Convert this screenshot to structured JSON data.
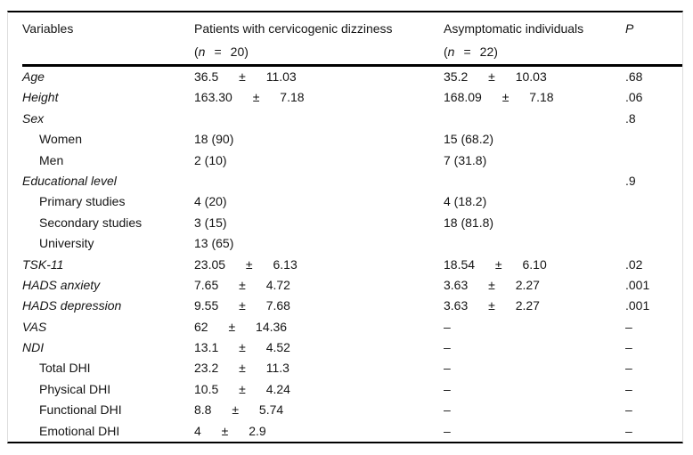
{
  "table": {
    "columns": [
      {
        "title": "Variables"
      },
      {
        "title": "Patients with cervicogenic dizziness",
        "n_open": "(",
        "n_symbol": "n",
        "n_eq": "=",
        "n_value": "20",
        "n_close": ")"
      },
      {
        "title": "Asymptomatic individuals",
        "n_open": "(",
        "n_symbol": "n",
        "n_eq": "=",
        "n_value": "22",
        "n_close": ")"
      },
      {
        "title": "P"
      }
    ],
    "rows": [
      {
        "label": "Age",
        "level": 0,
        "patients": "36.5 ± 11.03",
        "asymptomatic": "35.2 ± 10.03",
        "p": ".68"
      },
      {
        "label": "Height",
        "level": 0,
        "patients": "163.30 ± 7.18",
        "asymptomatic": "168.09 ± 7.18",
        "p": ".06"
      },
      {
        "label": "Sex",
        "level": 0,
        "patients": "",
        "asymptomatic": "",
        "p": ".8"
      },
      {
        "label": "Women",
        "level": 1,
        "patients": "18 (90)",
        "asymptomatic": "15 (68.2)",
        "p": ""
      },
      {
        "label": "Men",
        "level": 1,
        "patients": "2 (10)",
        "asymptomatic": "7 (31.8)",
        "p": ""
      },
      {
        "label": "Educational level",
        "level": 0,
        "patients": "",
        "asymptomatic": "",
        "p": ".9"
      },
      {
        "label": "Primary studies",
        "level": 1,
        "patients": "4 (20)",
        "asymptomatic": "4 (18.2)",
        "p": ""
      },
      {
        "label": "Secondary studies",
        "level": 1,
        "patients": "3 (15)",
        "asymptomatic": "18 (81.8)",
        "p": ""
      },
      {
        "label": "University",
        "level": 1,
        "patients": "13 (65)",
        "asymptomatic": "",
        "p": ""
      },
      {
        "label": "TSK-11",
        "level": 0,
        "patients": "23.05 ± 6.13",
        "asymptomatic": "18.54 ± 6.10",
        "p": ".02"
      },
      {
        "label": "HADS anxiety",
        "level": 0,
        "patients": "7.65 ± 4.72",
        "asymptomatic": "3.63 ± 2.27",
        "p": ".001"
      },
      {
        "label": "HADS depression",
        "level": 0,
        "patients": "9.55 ± 7.68",
        "asymptomatic": "3.63 ± 2.27",
        "p": ".001"
      },
      {
        "label": "VAS",
        "level": 0,
        "patients": "62 ± 14.36",
        "asymptomatic": "–",
        "p": "–"
      },
      {
        "label": "NDI",
        "level": 0,
        "patients": "13.1 ± 4.52",
        "asymptomatic": "–",
        "p": "–"
      },
      {
        "label": "Total DHI",
        "level": 1,
        "patients": "23.2 ± 11.3",
        "asymptomatic": "–",
        "p": "–"
      },
      {
        "label": "Physical DHI",
        "level": 1,
        "patients": "10.5 ± 4.24",
        "asymptomatic": "–",
        "p": "–"
      },
      {
        "label": "Functional DHI",
        "level": 1,
        "patients": "8.8 ± 5.74",
        "asymptomatic": "–",
        "p": "–"
      },
      {
        "label": "Emotional DHI",
        "level": 1,
        "patients": "4 ± 2.9",
        "asymptomatic": "–",
        "p": "–"
      }
    ]
  }
}
